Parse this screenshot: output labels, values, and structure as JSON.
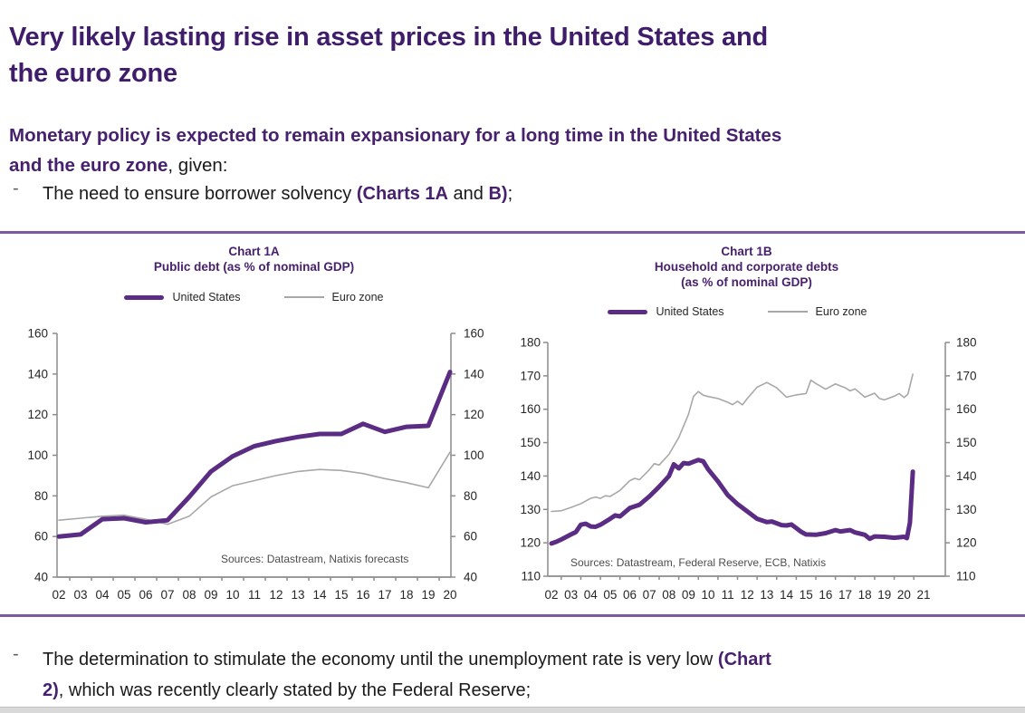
{
  "heading": {
    "line1": "Very likely lasting rise in asset prices in the United States and",
    "line2": "the euro zone"
  },
  "intro": {
    "line1_bold": "Monetary policy is expected to remain expansionary for a long time in the United States",
    "line2_bold": "and the euro zone",
    "line2_rest": ", given:"
  },
  "bullets": [
    {
      "dash": "-",
      "pre": "The need to ensure borrower solvency ",
      "ref1": "(Charts 1A",
      "mid": " and ",
      "ref2": "B)",
      "end": ";"
    },
    {
      "dash": "-",
      "line1_pre": "The determination to stimulate the economy until the unemployment rate is very low ",
      "line1_ref": "(Chart",
      "line2_ref": "2)",
      "line2_rest": ", which was recently clearly stated by the Federal Reserve;"
    }
  ],
  "colors": {
    "text_purple": "#47216E",
    "heading_purple": "#3F1D6B",
    "chart_line_purple": "#5B2C83",
    "chart_line_gray": "#A8A8A8",
    "separator_purple": "#7C59A3",
    "axis_gray": "#8C8C8C"
  },
  "chart_data": [
    {
      "type": "line",
      "title_lines": [
        "Chart 1A",
        "Public debt (as % of nominal GDP)"
      ],
      "source": "Sources:  Datastream,  Natixis forecasts",
      "legend_position": "top",
      "grid": false,
      "x_range": [
        2002,
        2020
      ],
      "y_range": [
        40,
        160
      ],
      "y_ticks": [
        40,
        60,
        80,
        100,
        120,
        140,
        160
      ],
      "x_tick_labels": [
        "02",
        "03",
        "04",
        "05",
        "06",
        "07",
        "08",
        "09",
        "10",
        "11",
        "12",
        "13",
        "14",
        "15",
        "16",
        "17",
        "18",
        "19",
        "20"
      ],
      "series": [
        {
          "name": "United States",
          "color": "#5B2C83",
          "width": 5,
          "points": [
            [
              2002,
              60
            ],
            [
              2003,
              61
            ],
            [
              2004,
              68.5
            ],
            [
              2005,
              69
            ],
            [
              2006,
              67
            ],
            [
              2007,
              68
            ],
            [
              2008,
              79.5
            ],
            [
              2009,
              92
            ],
            [
              2010,
              99.5
            ],
            [
              2011,
              104.5
            ],
            [
              2012,
              107
            ],
            [
              2013,
              109
            ],
            [
              2014,
              110.5
            ],
            [
              2015,
              110.5
            ],
            [
              2016,
              115.5
            ],
            [
              2017,
              111.5
            ],
            [
              2018,
              114
            ],
            [
              2019,
              114.5
            ],
            [
              2020,
              141
            ]
          ]
        },
        {
          "name": "Euro zone",
          "color": "#A8A8A8",
          "width": 1.6,
          "points": [
            [
              2002,
              68
            ],
            [
              2003,
              69
            ],
            [
              2004,
              70
            ],
            [
              2005,
              70.5
            ],
            [
              2006,
              68.5
            ],
            [
              2007,
              66
            ],
            [
              2008,
              70
            ],
            [
              2009,
              79.5
            ],
            [
              2010,
              85
            ],
            [
              2011,
              87.5
            ],
            [
              2012,
              90
            ],
            [
              2013,
              92
            ],
            [
              2014,
              93
            ],
            [
              2015,
              92.5
            ],
            [
              2016,
              91
            ],
            [
              2017,
              88.5
            ],
            [
              2018,
              86.5
            ],
            [
              2019,
              84
            ],
            [
              2020,
              101.5
            ]
          ]
        }
      ]
    },
    {
      "type": "line",
      "title_lines": [
        "Chart 1B",
        "Household and corporate debts",
        "(as % of nominal GDP)"
      ],
      "source": "Sources:  Datastream,  Federal Reserve,  ECB, Natixis",
      "legend_position": "top",
      "grid": false,
      "x_range": [
        2002,
        2021
      ],
      "y_range": [
        110,
        180
      ],
      "y_ticks": [
        110,
        120,
        130,
        140,
        150,
        160,
        170,
        180
      ],
      "x_tick_labels": [
        "02",
        "03",
        "04",
        "05",
        "06",
        "07",
        "08",
        "09",
        "10",
        "11",
        "12",
        "13",
        "14",
        "15",
        "16",
        "17",
        "18",
        "19",
        "20",
        "21"
      ],
      "series": [
        {
          "name": "United States",
          "color": "#5B2C83",
          "width": 5,
          "points": [
            [
              2002,
              119.8
            ],
            [
              2002.25,
              120.3
            ],
            [
              2002.5,
              121
            ],
            [
              2003,
              122.5
            ],
            [
              2003.25,
              123.2
            ],
            [
              2003.5,
              125.4
            ],
            [
              2003.75,
              125.7
            ],
            [
              2004,
              124.9
            ],
            [
              2004.25,
              124.8
            ],
            [
              2004.5,
              125.4
            ],
            [
              2005,
              127.2
            ],
            [
              2005.25,
              128.2
            ],
            [
              2005.5,
              127.9
            ],
            [
              2006,
              130.4
            ],
            [
              2006.5,
              131.4
            ],
            [
              2007,
              133.9
            ],
            [
              2007.5,
              136.8
            ],
            [
              2008,
              140
            ],
            [
              2008.25,
              143.5
            ],
            [
              2008.5,
              142.3
            ],
            [
              2008.75,
              143.9
            ],
            [
              2009,
              143.7
            ],
            [
              2009.5,
              144.8
            ],
            [
              2009.75,
              144.4
            ],
            [
              2010,
              142
            ],
            [
              2010.5,
              138.4
            ],
            [
              2011,
              134.3
            ],
            [
              2011.5,
              131.6
            ],
            [
              2012,
              129.4
            ],
            [
              2012.5,
              127.2
            ],
            [
              2013,
              126.2
            ],
            [
              2013.25,
              126.4
            ],
            [
              2013.75,
              125.3
            ],
            [
              2014,
              125.2
            ],
            [
              2014.25,
              125.5
            ],
            [
              2014.75,
              123.3
            ],
            [
              2015,
              122.5
            ],
            [
              2015.5,
              122.4
            ],
            [
              2016,
              122.9
            ],
            [
              2016.5,
              123.8
            ],
            [
              2016.75,
              123.4
            ],
            [
              2017.25,
              123.8
            ],
            [
              2017.5,
              123.1
            ],
            [
              2018,
              122.4
            ],
            [
              2018.25,
              121.2
            ],
            [
              2018.5,
              121.9
            ],
            [
              2019,
              121.8
            ],
            [
              2019.5,
              121.5
            ],
            [
              2020,
              121.8
            ],
            [
              2020.15,
              121.4
            ],
            [
              2020.3,
              126
            ],
            [
              2020.45,
              141.3
            ]
          ]
        },
        {
          "name": "Euro zone",
          "color": "#A8A8A8",
          "width": 1.6,
          "points": [
            [
              2002,
              129.4
            ],
            [
              2002.5,
              129.6
            ],
            [
              2003,
              130.6
            ],
            [
              2003.5,
              131.7
            ],
            [
              2004,
              133.3
            ],
            [
              2004.25,
              133.7
            ],
            [
              2004.5,
              133.3
            ],
            [
              2004.75,
              134.1
            ],
            [
              2005,
              133.9
            ],
            [
              2005.5,
              135.7
            ],
            [
              2006,
              138.6
            ],
            [
              2006.25,
              139.3
            ],
            [
              2006.5,
              138.9
            ],
            [
              2007,
              141.9
            ],
            [
              2007.25,
              143.7
            ],
            [
              2007.5,
              143.3
            ],
            [
              2008,
              146.5
            ],
            [
              2008.5,
              151.5
            ],
            [
              2009,
              158.5
            ],
            [
              2009.25,
              163.8
            ],
            [
              2009.5,
              165.3
            ],
            [
              2009.75,
              164.2
            ],
            [
              2010,
              163.8
            ],
            [
              2010.5,
              163.2
            ],
            [
              2011,
              162.1
            ],
            [
              2011.25,
              161.4
            ],
            [
              2011.5,
              162.4
            ],
            [
              2011.75,
              161.3
            ],
            [
              2012,
              163.2
            ],
            [
              2012.5,
              166.6
            ],
            [
              2013,
              168
            ],
            [
              2013.5,
              166.4
            ],
            [
              2014,
              163.6
            ],
            [
              2014.5,
              164.3
            ],
            [
              2015,
              164.7
            ],
            [
              2015.25,
              168.7
            ],
            [
              2015.5,
              167.7
            ],
            [
              2016,
              166
            ],
            [
              2016.5,
              167.6
            ],
            [
              2017,
              166.4
            ],
            [
              2017.25,
              165.5
            ],
            [
              2017.5,
              166.1
            ],
            [
              2018,
              163.6
            ],
            [
              2018.5,
              164.8
            ],
            [
              2018.75,
              163.2
            ],
            [
              2019,
              162.8
            ],
            [
              2019.5,
              163.9
            ],
            [
              2019.75,
              164.7
            ],
            [
              2020,
              163.5
            ],
            [
              2020.2,
              164.5
            ],
            [
              2020.45,
              170.5
            ]
          ]
        }
      ]
    }
  ]
}
